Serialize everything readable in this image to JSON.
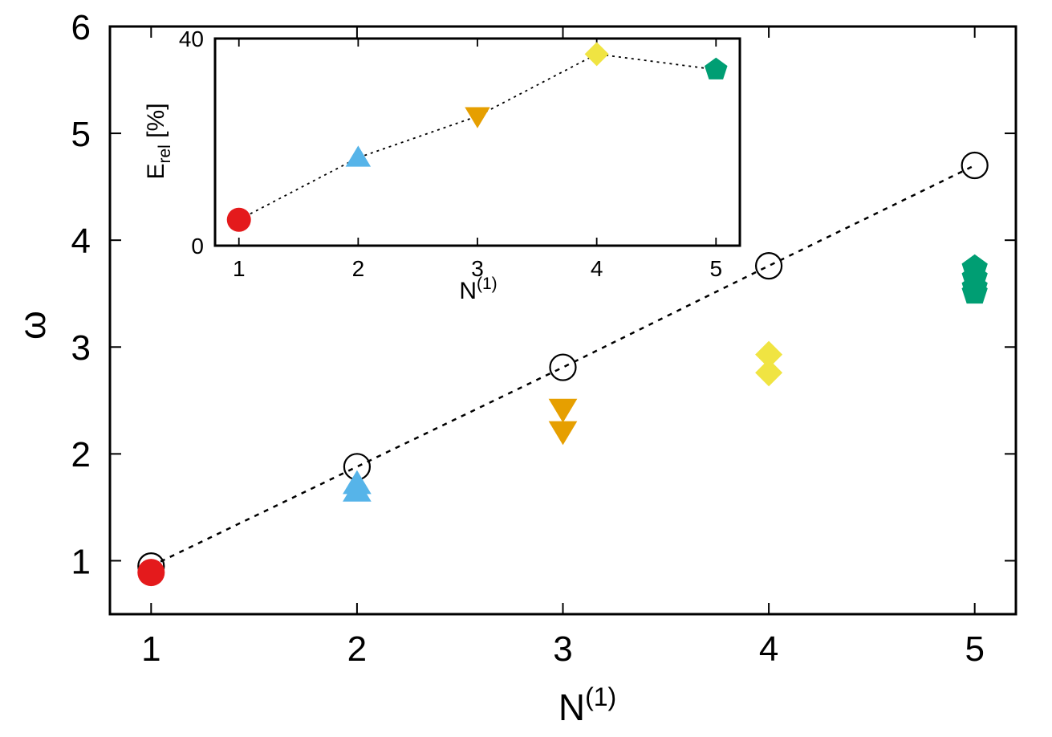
{
  "chart_data": [
    {
      "type": "scatter",
      "title": "",
      "xlabel": "N",
      "xlabel_sup": "(1)",
      "ylabel": "ω",
      "xlim": [
        0.8,
        5.2
      ],
      "ylim": [
        0.5,
        6
      ],
      "xticks": [
        "1",
        "2",
        "3",
        "4",
        "5"
      ],
      "yticks": [
        "1",
        "2",
        "3",
        "4",
        "5",
        "6"
      ],
      "series": [
        {
          "marker": "open-circle",
          "color": "#000000",
          "line": "dotted",
          "points": [
            {
              "x": 1,
              "y": 0.95
            },
            {
              "x": 2,
              "y": 1.88
            },
            {
              "x": 3,
              "y": 2.81
            },
            {
              "x": 4,
              "y": 3.76
            },
            {
              "x": 5,
              "y": 4.7
            }
          ]
        },
        {
          "marker": "filled-circle",
          "color": "#e41a1c",
          "points": [
            {
              "x": 1,
              "y": 0.89
            }
          ]
        },
        {
          "marker": "triangle-up",
          "color": "#56b4e9",
          "points": [
            {
              "x": 2,
              "y": 1.72
            },
            {
              "x": 2,
              "y": 1.65
            }
          ]
        },
        {
          "marker": "triangle-down",
          "color": "#e69f00",
          "points": [
            {
              "x": 3,
              "y": 2.42
            },
            {
              "x": 3,
              "y": 2.21
            }
          ]
        },
        {
          "marker": "diamond",
          "color": "#f0e442",
          "points": [
            {
              "x": 4,
              "y": 2.93
            },
            {
              "x": 4,
              "y": 2.76
            }
          ]
        },
        {
          "marker": "pentagon",
          "color": "#009e73",
          "points": [
            {
              "x": 5,
              "y": 3.74
            },
            {
              "x": 5,
              "y": 3.65
            },
            {
              "x": 5,
              "y": 3.56
            },
            {
              "x": 5,
              "y": 3.51
            }
          ]
        }
      ]
    },
    {
      "type": "scatter",
      "inset": true,
      "title": "",
      "xlabel": "N",
      "xlabel_sup": "(1)",
      "ylabel": "E",
      "ylabel_sub": "rel",
      "ylabel_suffix": " [%]",
      "xlim": [
        0.8,
        5.2
      ],
      "ylim": [
        0,
        40
      ],
      "xticks": [
        "1",
        "2",
        "3",
        "4",
        "5"
      ],
      "yticks": [
        "0",
        "40"
      ],
      "line": "dotted",
      "points": [
        {
          "x": 1,
          "y": 5,
          "marker": "filled-circle",
          "color": "#e41a1c"
        },
        {
          "x": 2,
          "y": 17,
          "marker": "triangle-up",
          "color": "#56b4e9"
        },
        {
          "x": 3,
          "y": 25,
          "marker": "triangle-down",
          "color": "#e69f00"
        },
        {
          "x": 4,
          "y": 37,
          "marker": "diamond",
          "color": "#f0e442"
        },
        {
          "x": 5,
          "y": 34,
          "marker": "pentagon",
          "color": "#009e73"
        }
      ]
    }
  ]
}
